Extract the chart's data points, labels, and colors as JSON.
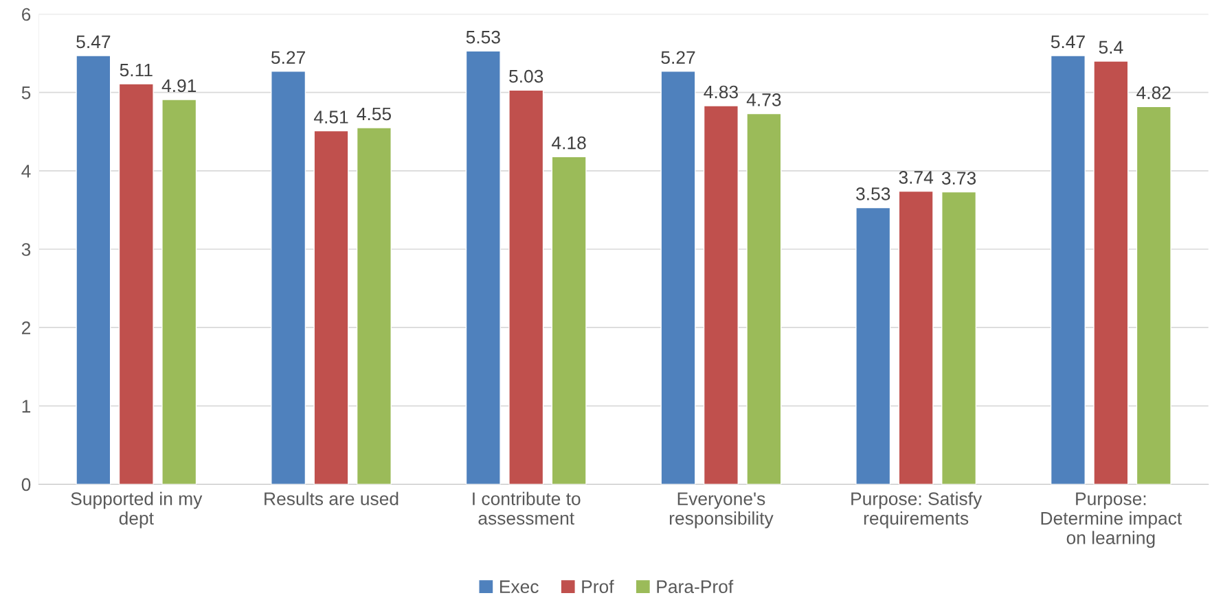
{
  "chart_data": {
    "type": "bar",
    "categories": [
      "Supported in my\ndept",
      "Results are used",
      "I contribute to\nassessment",
      "Everyone's\nresponsibility",
      "Purpose: Satisfy\nrequirements",
      "Purpose:\nDetermine impact\non learning"
    ],
    "series": [
      {
        "name": "Exec",
        "color": "#4f81bd",
        "values": [
          5.47,
          5.27,
          5.53,
          5.27,
          3.53,
          5.47
        ]
      },
      {
        "name": "Prof",
        "color": "#c0504d",
        "values": [
          5.11,
          4.51,
          5.03,
          4.83,
          3.74,
          5.4
        ]
      },
      {
        "name": "Para-Prof",
        "color": "#9bbb59",
        "values": [
          4.91,
          4.55,
          4.18,
          4.73,
          3.73,
          4.82
        ]
      }
    ],
    "ylim": [
      0,
      6
    ],
    "yticks": [
      0,
      1,
      2,
      3,
      4,
      5,
      6
    ],
    "grid": "y",
    "legend": "bottom",
    "data_labels": true
  }
}
